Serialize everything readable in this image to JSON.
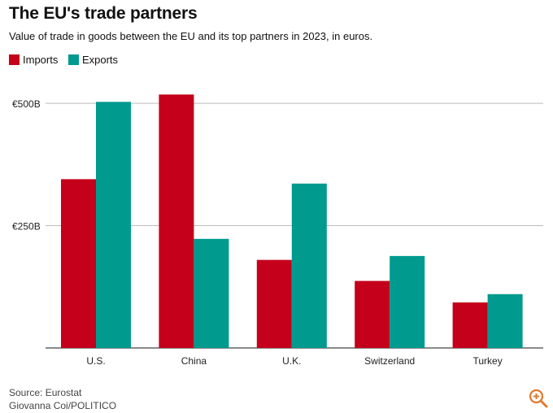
{
  "title": "The EU's trade partners",
  "subtitle": "Value of trade in goods between the EU and its top partners in 2023, in euros.",
  "footer": {
    "source": "Source: Eurostat",
    "credit": "Giovanna Coi/POLITICO"
  },
  "zoom_icon": "zoom-in-icon",
  "colors": {
    "imports": "#c4001a",
    "exports": "#009a8e",
    "grid": "#bbbbbb",
    "axis": "#444444"
  },
  "chart_data": {
    "type": "bar",
    "title": "The EU's trade partners",
    "subtitle": "Value of trade in goods between the EU and its top partners in 2023, in euros.",
    "categories": [
      "U.S.",
      "China",
      "U.K.",
      "Switzerland",
      "Turkey"
    ],
    "series": [
      {
        "name": "Imports",
        "values": [
          345,
          518,
          180,
          137,
          93
        ]
      },
      {
        "name": "Exports",
        "values": [
          503,
          223,
          336,
          188,
          110
        ]
      }
    ],
    "y_ticks": [
      250,
      500
    ],
    "y_tick_labels": [
      "€250B",
      "€500B"
    ],
    "ylim": [
      0,
      560
    ],
    "unit": "billion euros",
    "grid": true,
    "legend_position": "top-left"
  }
}
